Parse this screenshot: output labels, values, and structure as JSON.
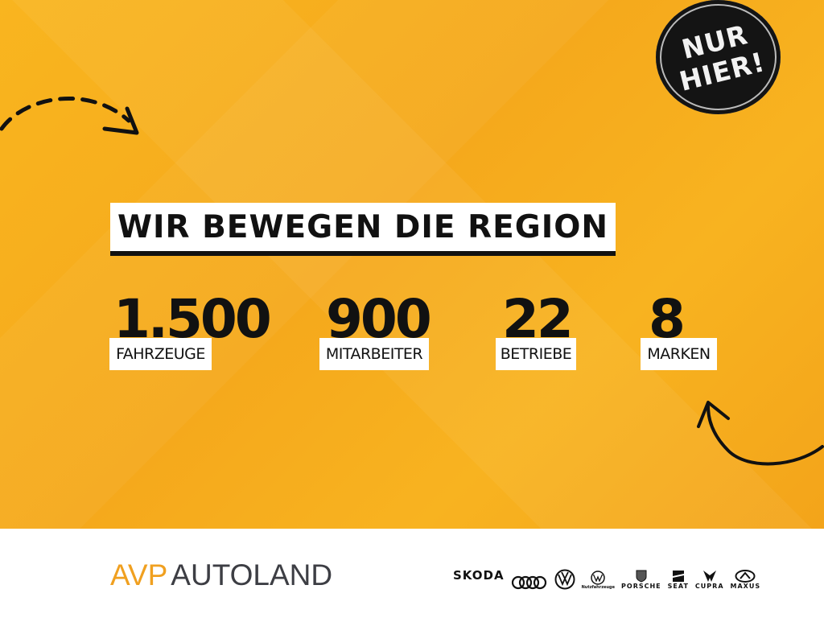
{
  "headline": "WIR BEWEGEN DIE REGION",
  "badge": {
    "line1": "NUR",
    "line2": "HIER!"
  },
  "stats": [
    {
      "value": "1.500",
      "label": "FAHRZEUGE"
    },
    {
      "value": "900",
      "label": "MITARBEITER"
    },
    {
      "value": "22",
      "label": "BETRIEBE"
    },
    {
      "value": "8",
      "label": "MARKEN"
    }
  ],
  "footer": {
    "logo": {
      "part1": "AVP",
      "part2": "AUTOLAND"
    },
    "brands": [
      "SKODA",
      "Audi",
      "Volkswagen",
      "Nutzfahrzeuge",
      "PORSCHE",
      "SEAT",
      "CUPRA",
      "MAXUS"
    ]
  },
  "colors": {
    "background": "#f7ae1e",
    "logo_accent": "#f0a020",
    "logo_dark": "#3d3e44"
  }
}
